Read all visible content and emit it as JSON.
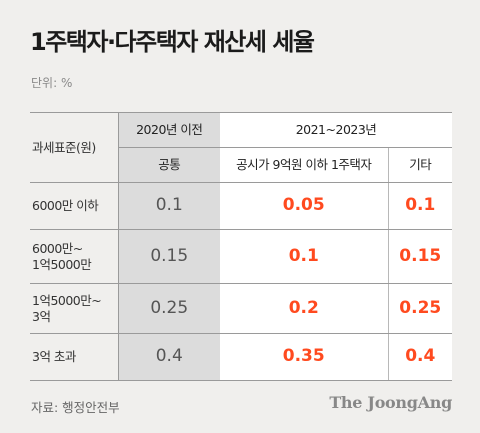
{
  "title": "1주택자·다주택자 재산세 세율",
  "unit": "단위: %",
  "table": {
    "row_header": "과세표준(원)",
    "period_old": "2020년 이전",
    "period_new": "2021~2023년",
    "col_common": "공통",
    "col_single": "공시가 9억원 이하 1주택자",
    "col_other": "기타",
    "rows": [
      {
        "label": "6000만 이하",
        "common": "0.1",
        "single": "0.05",
        "other": "0.1"
      },
      {
        "label": "6000만~\n1억5000만",
        "common": "0.15",
        "single": "0.1",
        "other": "0.15"
      },
      {
        "label": "1억5000만~\n3억",
        "common": "0.25",
        "single": "0.2",
        "other": "0.25"
      },
      {
        "label": "3억 초과",
        "common": "0.4",
        "single": "0.35",
        "other": "0.4"
      }
    ]
  },
  "source": "자료: 행정안전부",
  "logo": "The JoongAng",
  "colors": {
    "highlight": "#ff4a1f",
    "old_bg": "#dcdcdc",
    "page_bg": "#f0efed"
  }
}
